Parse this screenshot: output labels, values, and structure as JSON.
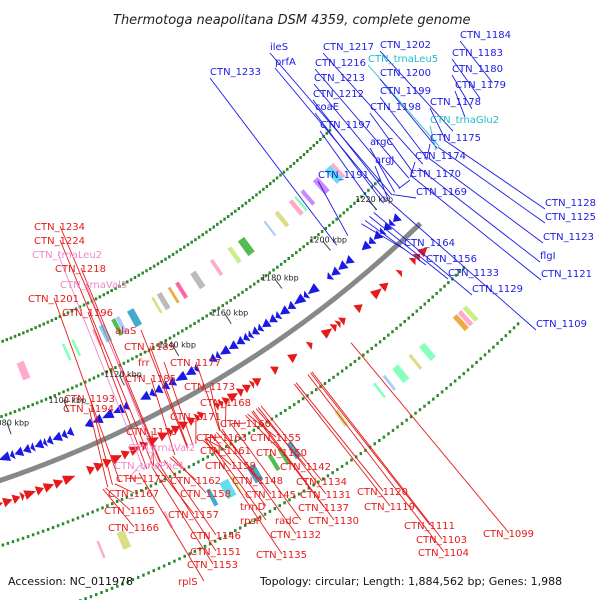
{
  "title": "Thermotoga neapolitana DSM 4359, complete genome",
  "footer": {
    "accession": "Accession: NC_011978",
    "summary": "Topology: circular; Length: 1,884,562 bp; Genes: 1,988"
  },
  "colors": {
    "forward": "#1a1ae6",
    "reverse": "#e61a1a",
    "trna": "#ee88cc",
    "trna_forward": "#22bbcc",
    "backbone": "#888888",
    "tick": "#2a8a2a"
  },
  "ticks": [
    "1220 kbp",
    "1200 kbp",
    "1180 kbp",
    "1160 kbp",
    "1140 kbp",
    "1120 kbp",
    "1100 kbp",
    "1080 kbp"
  ],
  "top_labels": [
    {
      "text": "ileS",
      "color": "forward"
    },
    {
      "text": "prfA",
      "color": "forward"
    },
    {
      "text": "CTN_1233",
      "color": "forward"
    },
    {
      "text": "CTN_1217",
      "color": "forward"
    },
    {
      "text": "CTN_1216",
      "color": "forward"
    },
    {
      "text": "CTN_1213",
      "color": "forward"
    },
    {
      "text": "CTN_1212",
      "color": "forward"
    },
    {
      "text": "coaE",
      "color": "forward"
    },
    {
      "text": "CTN_1197",
      "color": "forward"
    },
    {
      "text": "CTN_1202",
      "color": "forward"
    },
    {
      "text": "CTN_trnaLeu5",
      "color": "trna_forward"
    },
    {
      "text": "CTN_1200",
      "color": "forward"
    },
    {
      "text": "CTN_1199",
      "color": "forward"
    },
    {
      "text": "CTN_1198",
      "color": "forward"
    },
    {
      "text": "CTN_1184",
      "color": "forward"
    },
    {
      "text": "CTN_1183",
      "color": "forward"
    },
    {
      "text": "CTN_1180",
      "color": "forward"
    },
    {
      "text": "CTN_1179",
      "color": "forward"
    },
    {
      "text": "CTN_1178",
      "color": "forward"
    },
    {
      "text": "CTN_trnaGlu2",
      "color": "trna_forward"
    },
    {
      "text": "CTN_1175",
      "color": "forward"
    },
    {
      "text": "argC",
      "color": "forward"
    },
    {
      "text": "CTN_1174",
      "color": "forward"
    },
    {
      "text": "argJ",
      "color": "forward"
    },
    {
      "text": "CTN_1191",
      "color": "forward"
    },
    {
      "text": "CTN_1170",
      "color": "forward"
    },
    {
      "text": "CTN_1169",
      "color": "forward"
    },
    {
      "text": "CTN_1164",
      "color": "forward"
    },
    {
      "text": "CTN_1156",
      "color": "forward"
    },
    {
      "text": "CTN_1133",
      "color": "forward"
    },
    {
      "text": "CTN_1129",
      "color": "forward"
    },
    {
      "text": "CTN_1128",
      "color": "forward"
    },
    {
      "text": "CTN_1125",
      "color": "forward"
    },
    {
      "text": "CTN_1123",
      "color": "forward"
    },
    {
      "text": "flgI",
      "color": "forward"
    },
    {
      "text": "CTN_1121",
      "color": "forward"
    },
    {
      "text": "CTN_1109",
      "color": "forward"
    }
  ],
  "bottom_labels": [
    {
      "text": "CTN_1234",
      "color": "reverse"
    },
    {
      "text": "CTN_1224",
      "color": "reverse"
    },
    {
      "text": "CTN_trnaLeu2",
      "color": "trna"
    },
    {
      "text": "CTN_1218",
      "color": "reverse"
    },
    {
      "text": "CTN_trnaVal3",
      "color": "trna"
    },
    {
      "text": "CTN_1201",
      "color": "reverse"
    },
    {
      "text": "CTN_1196",
      "color": "reverse"
    },
    {
      "text": "alaS",
      "color": "reverse"
    },
    {
      "text": "CTN_1189",
      "color": "reverse"
    },
    {
      "text": "frr",
      "color": "reverse"
    },
    {
      "text": "CTN_1185",
      "color": "reverse"
    },
    {
      "text": "CTN_1177",
      "color": "reverse"
    },
    {
      "text": "CTN_1193",
      "color": "reverse"
    },
    {
      "text": "CTN_1194",
      "color": "reverse"
    },
    {
      "text": "CTN_1173",
      "color": "reverse"
    },
    {
      "text": "CTN_1168",
      "color": "reverse"
    },
    {
      "text": "CTN_1171",
      "color": "reverse"
    },
    {
      "text": "CTN_1176",
      "color": "reverse"
    },
    {
      "text": "CTN_1160",
      "color": "reverse"
    },
    {
      "text": "CTN_1163",
      "color": "reverse"
    },
    {
      "text": "CTN_1155",
      "color": "reverse"
    },
    {
      "text": "CTN_trnaVal2",
      "color": "trna"
    },
    {
      "text": "CTN_1161",
      "color": "reverse"
    },
    {
      "text": "CTN_1150",
      "color": "reverse"
    },
    {
      "text": "CTN_trnaPhe1",
      "color": "trna"
    },
    {
      "text": "CTN_1159",
      "color": "reverse"
    },
    {
      "text": "CTN_1142",
      "color": "reverse"
    },
    {
      "text": "CTN_1172",
      "color": "reverse"
    },
    {
      "text": "CTN_1162",
      "color": "reverse"
    },
    {
      "text": "CTN_1148",
      "color": "reverse"
    },
    {
      "text": "CTN_1134",
      "color": "reverse"
    },
    {
      "text": "CTN_1167",
      "color": "reverse"
    },
    {
      "text": "CTN_1158",
      "color": "reverse"
    },
    {
      "text": "CTN_1145",
      "color": "reverse"
    },
    {
      "text": "CTN_1131",
      "color": "reverse"
    },
    {
      "text": "CTN_1165",
      "color": "reverse"
    },
    {
      "text": "CTN_1157",
      "color": "reverse"
    },
    {
      "text": "trmD",
      "color": "reverse"
    },
    {
      "text": "CTN_1137",
      "color": "reverse"
    },
    {
      "text": "CTN_1166",
      "color": "reverse"
    },
    {
      "text": "rpsP",
      "color": "reverse"
    },
    {
      "text": "radC",
      "color": "reverse"
    },
    {
      "text": "CTN_1130",
      "color": "reverse"
    },
    {
      "text": "CTN_1146",
      "color": "reverse"
    },
    {
      "text": "CTN_1132",
      "color": "reverse"
    },
    {
      "text": "CTN_1151",
      "color": "reverse"
    },
    {
      "text": "CTN_1135",
      "color": "reverse"
    },
    {
      "text": "CTN_1153",
      "color": "reverse"
    },
    {
      "text": "rplS",
      "color": "reverse"
    },
    {
      "text": "CTN_1120",
      "color": "reverse"
    },
    {
      "text": "CTN_1119",
      "color": "reverse"
    },
    {
      "text": "CTN_1111",
      "color": "reverse"
    },
    {
      "text": "CTN_1103",
      "color": "reverse"
    },
    {
      "text": "CTN_1099",
      "color": "reverse"
    },
    {
      "text": "CTN_1104",
      "color": "reverse"
    }
  ]
}
